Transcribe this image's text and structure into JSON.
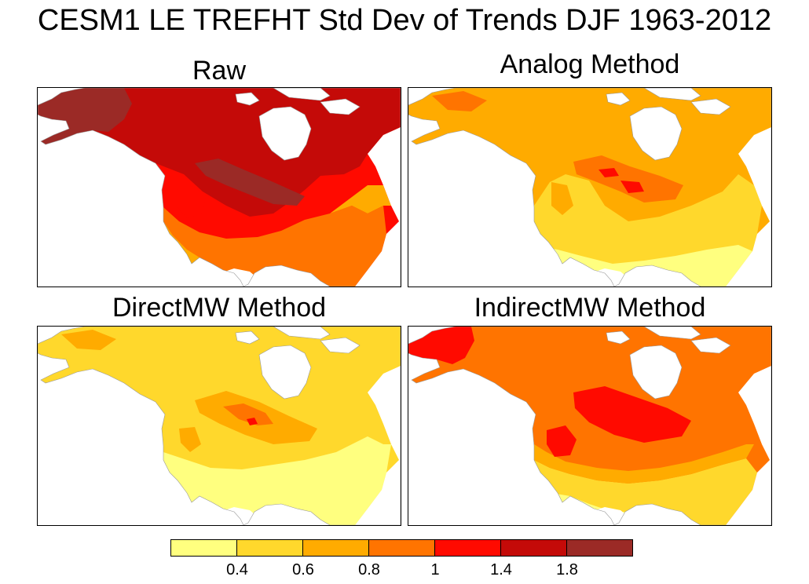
{
  "chart_data": {
    "type": "heatmap",
    "title": "CESM1 LE TREFHT Std Dev of Trends DJF 1963-2012",
    "panels": [
      {
        "title": "Raw",
        "map_region": "North America",
        "dominant_range": [
          1.0,
          1.8
        ]
      },
      {
        "title": "Analog Method",
        "map_region": "North America",
        "dominant_range": [
          0.4,
          1.4
        ]
      },
      {
        "title": "DirectMW Method",
        "map_region": "North America",
        "dominant_range": [
          0.4,
          1.4
        ]
      },
      {
        "title": "IndirectMW Method",
        "map_region": "North America",
        "dominant_range": [
          0.4,
          1.4
        ]
      }
    ],
    "colorbar": {
      "levels": [
        "0.4",
        "0.6",
        "0.8",
        "1",
        "1.4",
        "1.8"
      ],
      "colors": [
        "#ffff7f",
        "#ffd82c",
        "#ffab00",
        "#ff7400",
        "#ff0a00",
        "#c40a08",
        "#9b2a26"
      ]
    }
  },
  "palette": {
    "water": "#ffffff",
    "ice": "#ffffff",
    "outline": "#999999"
  }
}
